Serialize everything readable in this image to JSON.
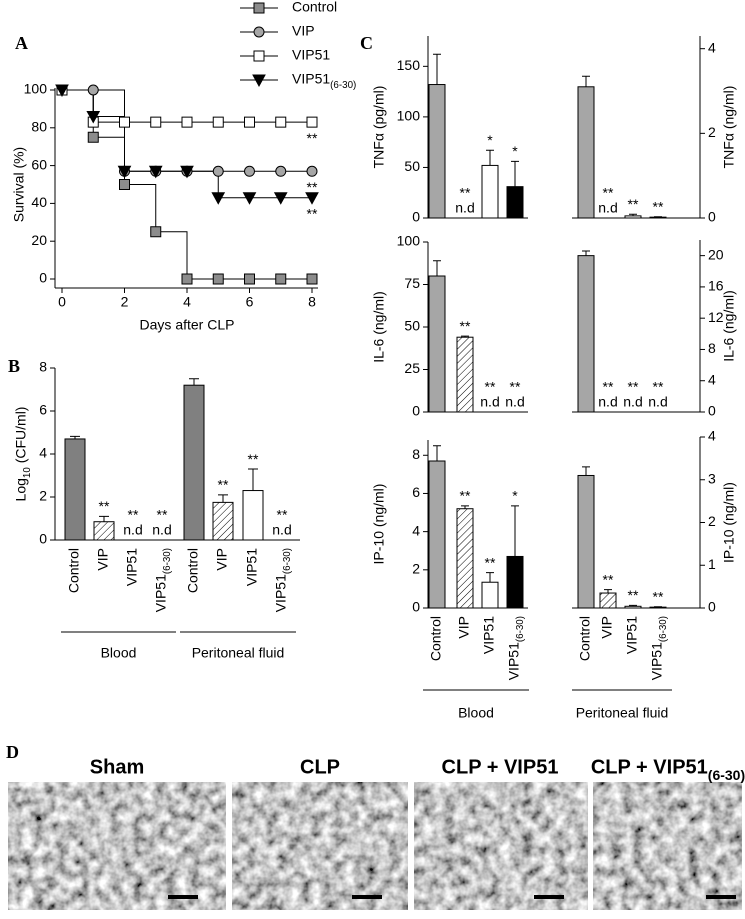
{
  "chart_data": [
    {
      "type": "line",
      "panel": "A",
      "xlabel": "Days after CLP",
      "ylabel": "Survival (%)",
      "step": true,
      "x": [
        0,
        1,
        2,
        3,
        4,
        5,
        6,
        7,
        8
      ],
      "xlim": [
        0,
        8
      ],
      "xticks": [
        0,
        2,
        4,
        6,
        8
      ],
      "ylim": [
        0,
        100
      ],
      "yticks": [
        0,
        20,
        40,
        60,
        80,
        100
      ],
      "series": [
        {
          "name": "Control",
          "color": "#8c8c8c",
          "marker": "square",
          "values": [
            100,
            75,
            50,
            25,
            0,
            0,
            0,
            0,
            0
          ]
        },
        {
          "name": "VIP",
          "color": "#a6a6a6",
          "marker": "circle",
          "values": [
            100,
            100,
            57,
            57,
            57,
            57,
            57,
            57,
            57
          ],
          "significance": "**"
        },
        {
          "name": "VIP51",
          "color": "#ffffff",
          "marker": "square",
          "values": [
            100,
            83,
            83,
            83,
            83,
            83,
            83,
            83,
            83
          ],
          "significance": "**"
        },
        {
          "name": "VIP51(6-30)",
          "color": "#000000",
          "marker": "triangle-down",
          "values": [
            100,
            86,
            57,
            57,
            57,
            43,
            43,
            43,
            43
          ],
          "significance": "**"
        }
      ]
    },
    {
      "type": "bar",
      "panel": "B",
      "ylabel": "Log10 (CFU/ml)",
      "ylim": [
        0,
        8
      ],
      "yticks": [
        0,
        2,
        4,
        6,
        8
      ],
      "categories": [
        "Control",
        "VIP",
        "VIP51",
        "VIP51(6-30)",
        "Control",
        "VIP",
        "VIP51",
        "VIP51(6-30)"
      ],
      "groups": [
        "Blood",
        "Peritoneal fluid"
      ],
      "values": [
        4.7,
        0.85,
        null,
        null,
        7.2,
        1.75,
        2.3,
        null
      ],
      "errors": [
        0.12,
        0.25,
        null,
        null,
        0.3,
        0.35,
        1.0,
        null
      ],
      "colors": [
        "#808080",
        "#ffffff",
        "#ffffff",
        "#000000",
        "#808080",
        "#ffffff",
        "#ffffff",
        "#000000"
      ],
      "hatched": [
        false,
        true,
        false,
        false,
        false,
        true,
        false,
        false
      ],
      "significance": [
        null,
        "**",
        "**",
        "**",
        null,
        "**",
        "**",
        "**"
      ],
      "notes": [
        null,
        null,
        "n.d",
        "n.d",
        null,
        null,
        null,
        "n.d"
      ]
    },
    {
      "type": "bar",
      "panel": "C",
      "ylabel": "TNFα (pg/ml)",
      "ylim": [
        0,
        180
      ],
      "yticks": [
        0,
        50,
        100,
        150
      ],
      "values": [
        132,
        null,
        52,
        31
      ],
      "errors": [
        30,
        null,
        15,
        25
      ],
      "colors": [
        "#a6a6a6",
        "#ffffff",
        "#ffffff",
        "#000000"
      ],
      "hatched": [
        false,
        true,
        false,
        false
      ],
      "significance": [
        null,
        "**",
        "*",
        "*"
      ],
      "notes": [
        null,
        "n.d",
        null,
        null
      ]
    },
    {
      "type": "bar",
      "y_axis": "right",
      "ylabel": "TNFα (ng/ml)",
      "ylim": [
        0,
        4.3
      ],
      "yticks": [
        0,
        2,
        4
      ],
      "values": [
        3.1,
        null,
        0.05,
        0.02
      ],
      "errors": [
        0.25,
        null,
        0.04,
        0.01
      ],
      "colors": [
        "#a6a6a6",
        "#ffffff",
        "#ffffff",
        "#000000"
      ],
      "hatched": [
        false,
        true,
        false,
        false
      ],
      "significance": [
        null,
        "**",
        "**",
        "**"
      ],
      "notes": [
        null,
        "n.d",
        null,
        null
      ]
    },
    {
      "type": "bar",
      "ylabel": "IL-6 (ng/ml)",
      "ylim": [
        0,
        100
      ],
      "yticks": [
        0,
        25,
        50,
        75,
        100
      ],
      "values": [
        80,
        44,
        null,
        null
      ],
      "errors": [
        9,
        0.6,
        null,
        null
      ],
      "colors": [
        "#a6a6a6",
        "#ffffff",
        "#ffffff",
        "#000000"
      ],
      "hatched": [
        false,
        true,
        false,
        false
      ],
      "significance": [
        null,
        "**",
        "**",
        "**"
      ],
      "notes": [
        null,
        null,
        "n.d",
        "n.d"
      ]
    },
    {
      "type": "bar",
      "y_axis": "right",
      "ylabel": "IL-6 (ng/ml)",
      "ylim": [
        0,
        22
      ],
      "yticks": [
        0,
        4,
        8,
        12,
        16,
        20
      ],
      "values": [
        20,
        null,
        null,
        null
      ],
      "errors": [
        0.6,
        null,
        null,
        null
      ],
      "colors": [
        "#a6a6a6",
        "#ffffff",
        "#ffffff",
        "#000000"
      ],
      "hatched": [
        false,
        true,
        false,
        false
      ],
      "significance": [
        null,
        "**",
        "**",
        "**"
      ],
      "notes": [
        null,
        "n.d",
        "n.d",
        "n.d"
      ]
    },
    {
      "type": "bar",
      "ylabel": "IP-10 (ng/ml)",
      "ylim": [
        0,
        8.8
      ],
      "yticks": [
        0,
        2,
        4,
        6,
        8
      ],
      "categories": [
        "Control",
        "VIP",
        "VIP51",
        "VIP51(6-30)"
      ],
      "xlabel": "Blood",
      "values": [
        7.7,
        5.2,
        1.35,
        2.7
      ],
      "errors": [
        0.8,
        0.15,
        0.5,
        2.65
      ],
      "colors": [
        "#a6a6a6",
        "#ffffff",
        "#ffffff",
        "#000000"
      ],
      "hatched": [
        false,
        true,
        false,
        false
      ],
      "significance": [
        null,
        "**",
        "**",
        "*"
      ]
    },
    {
      "type": "bar",
      "y_axis": "right",
      "ylabel": "IP-10 (ng/ml)",
      "ylim": [
        0,
        4
      ],
      "yticks": [
        0,
        1,
        2,
        3,
        4
      ],
      "categories": [
        "Control",
        "VIP",
        "VIP51",
        "VIP51(6-30)"
      ],
      "xlabel": "Peritoneal fluid",
      "values": [
        3.1,
        0.35,
        0.04,
        0.02
      ],
      "errors": [
        0.2,
        0.08,
        0.02,
        0.01
      ],
      "colors": [
        "#a6a6a6",
        "#ffffff",
        "#ffffff",
        "#000000"
      ],
      "hatched": [
        false,
        true,
        false,
        false
      ],
      "significance": [
        null,
        "**",
        "**",
        "**"
      ]
    }
  ],
  "panel_d": {
    "label": "D",
    "images": [
      {
        "title": "Sham"
      },
      {
        "title": "CLP"
      },
      {
        "title": "CLP + VIP51"
      },
      {
        "title": "CLP + VIP51(6-30)"
      }
    ]
  }
}
